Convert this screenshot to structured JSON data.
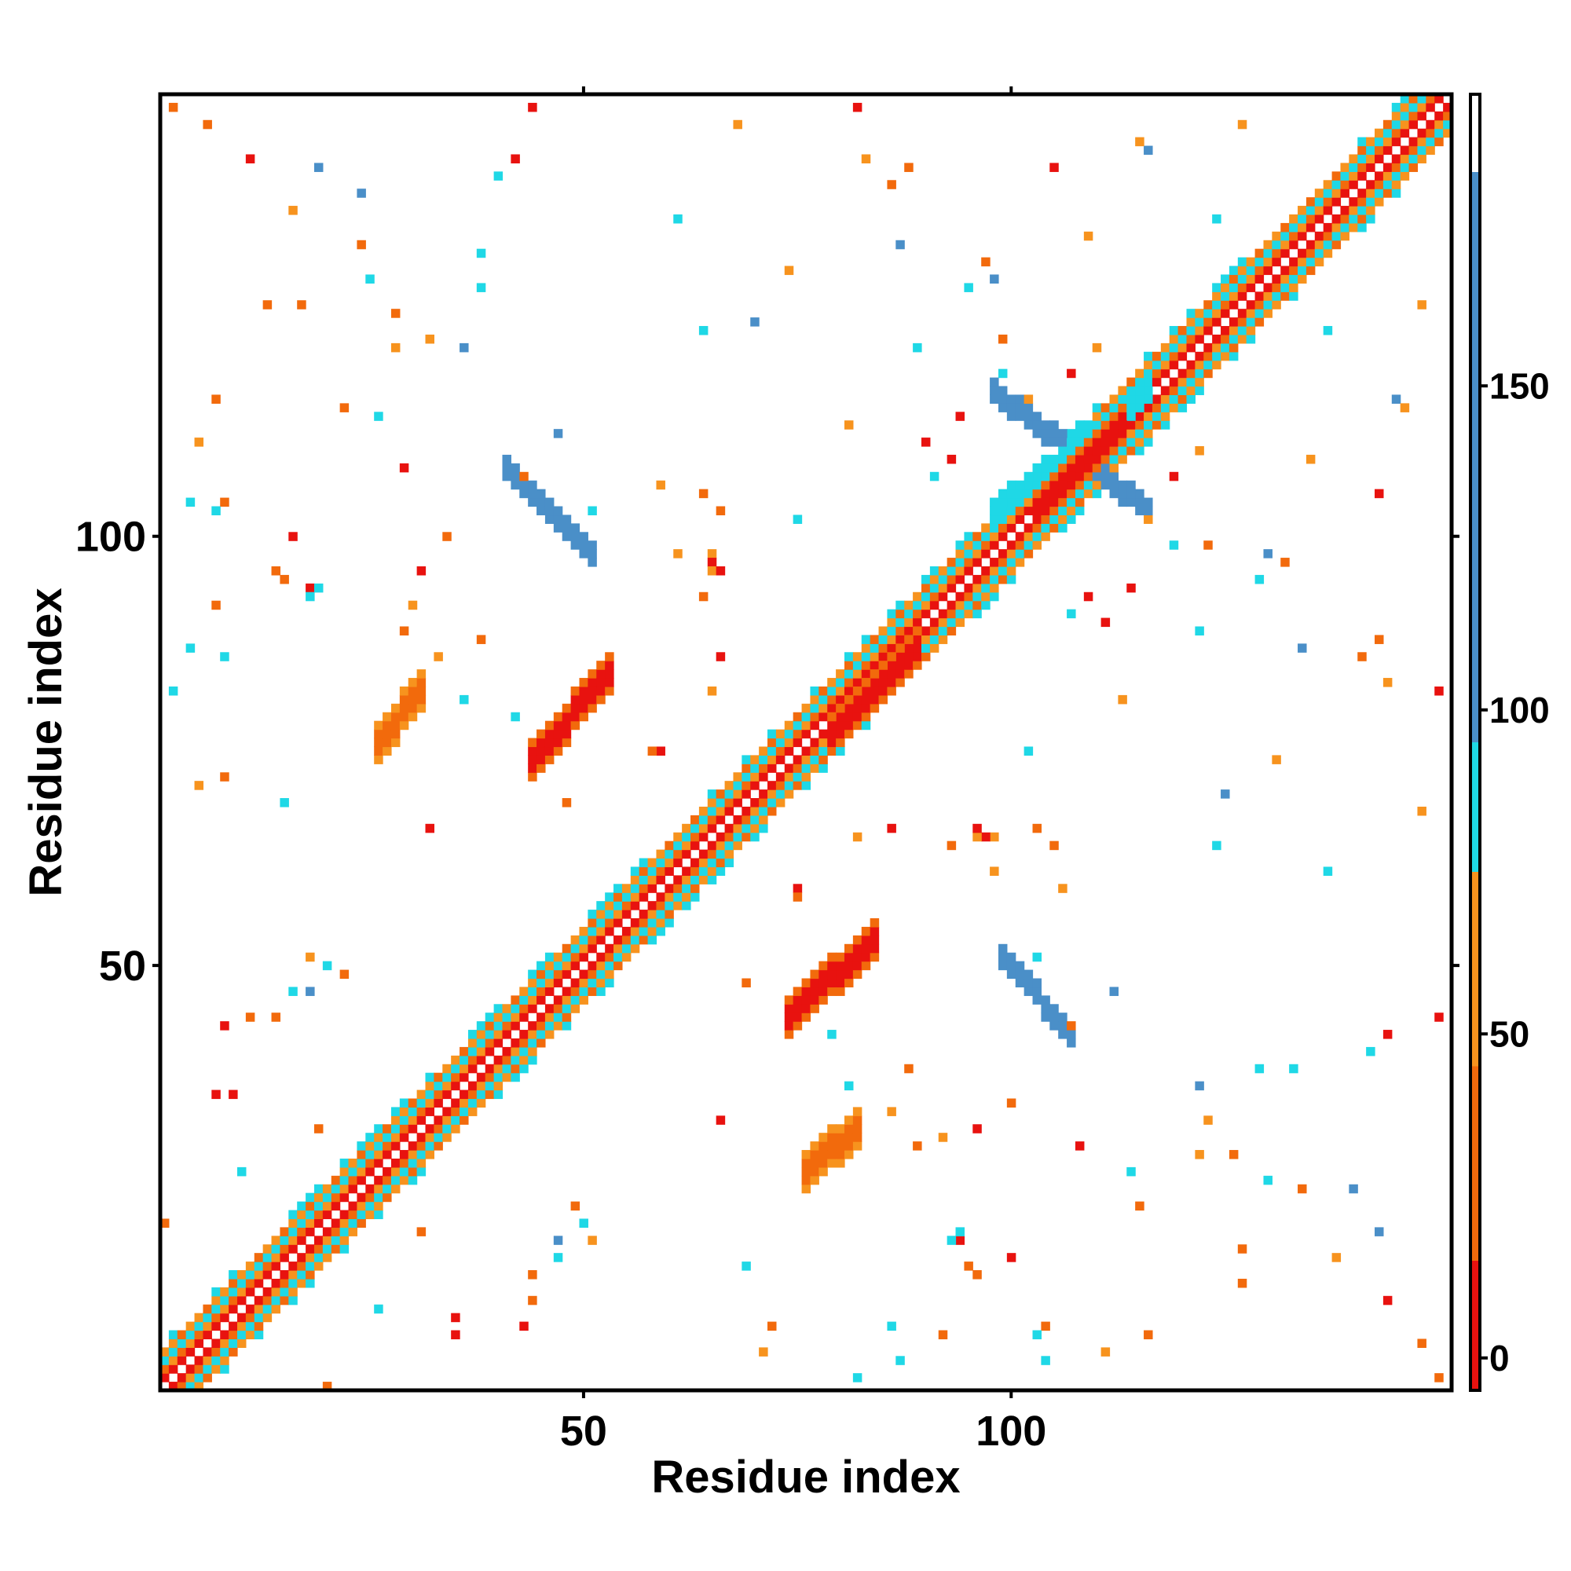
{
  "chart_data": {
    "type": "heatmap",
    "title": "",
    "xlabel": "Residue index",
    "ylabel": "Residue index",
    "xlim": [
      1,
      151
    ],
    "ylim": [
      1,
      151
    ],
    "x_ticks": [
      {
        "value": 50,
        "label": "50"
      },
      {
        "value": 100,
        "label": "100"
      }
    ],
    "y_ticks": [
      {
        "value": 50,
        "label": "50"
      },
      {
        "value": 100,
        "label": "100"
      }
    ],
    "grid": false,
    "legend": "none",
    "colorbar": {
      "placement": "right",
      "range": [
        -5,
        195
      ],
      "ticks": [
        {
          "value": 0,
          "label": "0"
        },
        {
          "value": 50,
          "label": "50"
        },
        {
          "value": 100,
          "label": "100"
        },
        {
          "value": 150,
          "label": "150"
        }
      ],
      "bands": [
        {
          "from": -5,
          "to": 15,
          "color": "#e8120f"
        },
        {
          "from": 15,
          "to": 45,
          "color": "#f26a0c"
        },
        {
          "from": 45,
          "to": 75,
          "color": "#f7931e"
        },
        {
          "from": 75,
          "to": 95,
          "color": "#1fd8e6"
        },
        {
          "from": 95,
          "to": 183,
          "color": "#4a8fc8"
        },
        {
          "from": 183,
          "to": 195,
          "color": "#ffffff"
        }
      ]
    },
    "description": "Residue-residue distance matrix, symmetric about the diagonal; cells show values binned by color.",
    "regions": [
      {
        "x": [
          1,
          151
        ],
        "y_offset_from_diagonal": 0,
        "band": "diagonal",
        "value_pattern": "alternating 0/50/100 near diagonal"
      },
      {
        "center_x": 48,
        "center_y": 102,
        "shape": "anti-diagonal strip",
        "value": 150,
        "x_range": [
          41,
          51
        ],
        "y_range": [
          98,
          108
        ]
      },
      {
        "center_x": 103,
        "center_y": 47,
        "shape": "anti-diagonal strip",
        "value": 150,
        "x_range": [
          99,
          107
        ],
        "y_range": [
          42,
          51
        ]
      },
      {
        "center_x": 104,
        "center_y": 110,
        "shape": "cross",
        "value": 150,
        "x_range": [
          98,
          116
        ],
        "y_range": [
          103,
          117
        ]
      },
      {
        "center_x": 48,
        "center_y": 79,
        "shape": "diagonal blob",
        "value": 10,
        "x_range": [
          44,
          53
        ],
        "y_range": [
          74,
          84
        ]
      },
      {
        "center_x": 78,
        "center_y": 48,
        "shape": "diagonal blob",
        "value": 10,
        "x_range": [
          74,
          84
        ],
        "y_range": [
          44,
          53
        ]
      },
      {
        "center_x": 28,
        "center_y": 79,
        "shape": "diagonal blob",
        "value": 35,
        "x_range": [
          26,
          31
        ],
        "y_range": [
          76,
          82
        ]
      },
      {
        "center_x": 79,
        "center_y": 29,
        "shape": "diagonal blob",
        "value": 35,
        "x_range": [
          76,
          82
        ],
        "y_range": [
          26,
          31
        ]
      },
      {
        "center_x": 85,
        "center_y": 82,
        "shape": "diagonal blob",
        "value": 5,
        "x_range": [
          79,
          89
        ],
        "y_range": [
          77,
          87
        ]
      },
      {
        "center_x": 109,
        "center_y": 108,
        "shape": "diagonal blob",
        "value": 5,
        "x_range": [
          103,
          113
        ],
        "y_range": [
          103,
          113
        ]
      }
    ]
  }
}
